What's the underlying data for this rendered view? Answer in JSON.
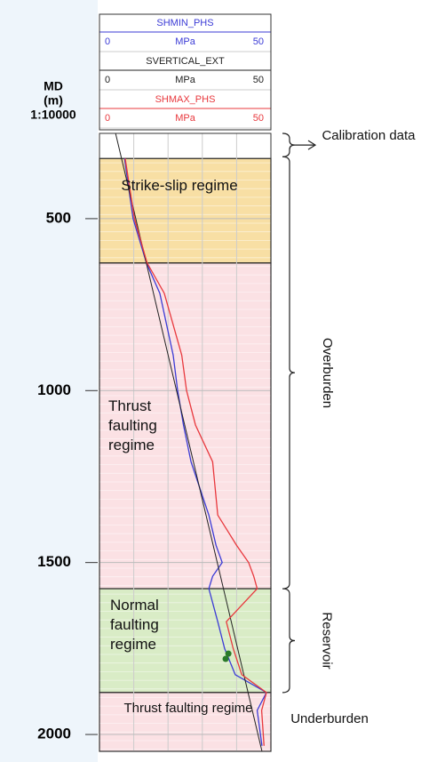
{
  "chart_data": {
    "type": "well-log",
    "depth_label": [
      "MD",
      "(m)"
    ],
    "scale": "1:10000",
    "unit": "MPa",
    "ylim": [
      252,
      2049
    ],
    "yticks": [
      500,
      1000,
      1500,
      2000
    ],
    "xlim": [
      0,
      50
    ],
    "xticks": [
      0,
      10,
      20,
      30,
      40,
      50
    ],
    "series": [
      {
        "name": "SHMIN_PHS",
        "color": "#3b3bd6",
        "depths": [
          325,
          500,
          629,
          717,
          897,
          1000,
          1100,
          1207,
          1362,
          1450,
          1500,
          1540,
          1576,
          1672,
          1750,
          1826,
          1878,
          1930,
          2033
        ],
        "values": [
          7.3,
          9.8,
          13.7,
          17.6,
          21.5,
          22.8,
          24.5,
          26.7,
          31.9,
          34.0,
          35.8,
          33.0,
          31.9,
          34.5,
          36.5,
          39.6,
          48.7,
          46.0,
          47.4
        ]
      },
      {
        "name": "SVERTICAL_EXT",
        "color": "#222222",
        "depths": [
          252,
          2049
        ],
        "values": [
          4.7,
          47.4
        ]
      },
      {
        "name": "SHMAX_PHS",
        "color": "#e8383d",
        "depths": [
          325,
          500,
          629,
          717,
          897,
          1000,
          1100,
          1207,
          1362,
          1450,
          1500,
          1540,
          1576,
          1672,
          1750,
          1826,
          1878,
          1930,
          2033
        ],
        "values": [
          7.5,
          10.2,
          13.9,
          18.9,
          24.0,
          25.4,
          28.0,
          33.0,
          34.5,
          40.0,
          43.5,
          45.0,
          46.0,
          37.0,
          39.0,
          41.5,
          48.7,
          47.3,
          48.0
        ]
      }
    ],
    "calibration_points": {
      "depths": [
        1765,
        1780
      ],
      "values": [
        37.6,
        36.8
      ],
      "color": "#2a7a2a"
    },
    "zones": [
      {
        "label": "Strike-slip regime",
        "top": 325,
        "base": 629,
        "color": "#f8dfa4"
      },
      {
        "label": "Thrust faulting regime",
        "top": 629,
        "base": 1576,
        "color": "#fbe1e4"
      },
      {
        "label": "Normal faulting regime",
        "top": 1576,
        "base": 1878,
        "color": "#d9ecc6"
      },
      {
        "label": "Thrust faulting regime",
        "top": 1878,
        "base": 2049,
        "color": "#fbe1e4"
      }
    ],
    "intervals": [
      {
        "label": "Calibration data",
        "top": 252,
        "base": 320
      },
      {
        "label": "Overburden",
        "top": 320,
        "base": 1576
      },
      {
        "label": "Reservoir",
        "top": 1576,
        "base": 1878
      },
      {
        "label": "Underburden",
        "top": 1878,
        "base": 2049
      }
    ]
  }
}
